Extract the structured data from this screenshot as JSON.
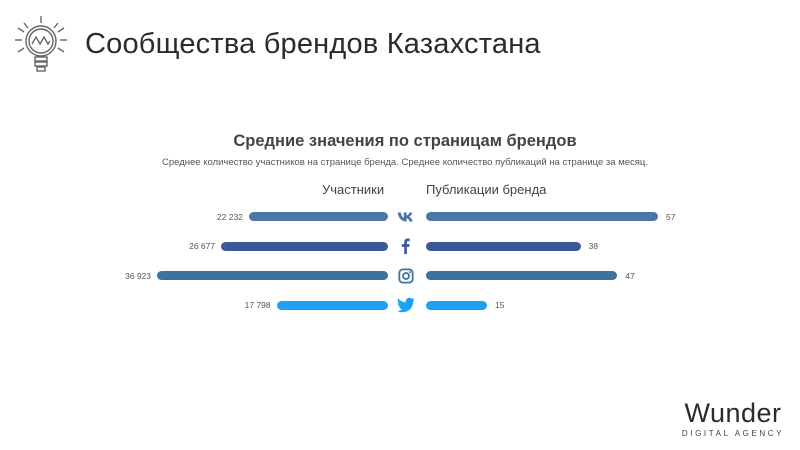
{
  "slide": {
    "title": "Сообщества брендов Казахстана"
  },
  "icons": {
    "logo": "lightbulb-icon"
  },
  "chart_data": {
    "type": "bar",
    "title": "Средние значения по страницам брендов",
    "subtitle": "Среднее количество участников на странице бренда. Среднее количество публикаций на странице за месяц.",
    "categories": [
      "vk",
      "facebook",
      "instagram",
      "twitter"
    ],
    "series": [
      {
        "name": "Участники",
        "values": [
          22232,
          26677,
          36923,
          17798
        ],
        "labels": [
          "22 232",
          "26 677",
          "36 923",
          "17 798"
        ]
      },
      {
        "name": "Публикации бренда",
        "values": [
          57,
          38,
          47,
          15
        ],
        "labels": [
          "57",
          "38",
          "47",
          "15"
        ]
      }
    ],
    "colors": [
      "#4a76a8",
      "#3b5998",
      "#3f729b",
      "#1da1f2"
    ]
  },
  "brand": {
    "name": "Wunder",
    "tagline": "DIGITAL AGENCY"
  }
}
